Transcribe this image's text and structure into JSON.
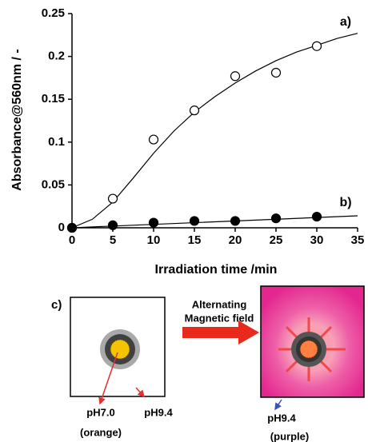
{
  "chart_data": {
    "type": "scatter",
    "xlabel": "Irradiation time /min",
    "ylabel": "Absorbance@560nm / -",
    "xlim": [
      0,
      35
    ],
    "xticks": [
      0,
      5,
      10,
      15,
      20,
      25,
      30,
      35
    ],
    "ylim": [
      0,
      0.25
    ],
    "yticks": [
      0,
      0.05,
      0.1,
      0.15,
      0.2,
      0.25
    ],
    "series": [
      {
        "name": "a)",
        "color": "#000000",
        "marker": "open",
        "x": [
          0,
          5,
          10,
          15,
          20,
          25,
          30
        ],
        "values": [
          0,
          0.034,
          0.103,
          0.137,
          0.177,
          0.181,
          0.212
        ]
      },
      {
        "name": "b)",
        "color": "#000000",
        "marker": "filled",
        "x": [
          0,
          5,
          10,
          15,
          20,
          25,
          30
        ],
        "values": [
          0,
          0.003,
          0.006,
          0.008,
          0.008,
          0.011,
          0.013
        ]
      }
    ],
    "fit_lines": [
      {
        "x": [
          0,
          2.5,
          5,
          7.5,
          10,
          12.5,
          15,
          17.5,
          20,
          22.5,
          25,
          27.5,
          30,
          32.5,
          35
        ],
        "values": [
          0,
          0.01,
          0.03,
          0.058,
          0.087,
          0.113,
          0.135,
          0.153,
          0.169,
          0.183,
          0.195,
          0.205,
          0.213,
          0.221,
          0.227
        ]
      },
      {
        "x": [
          0,
          35
        ],
        "values": [
          0,
          0.014
        ]
      }
    ]
  },
  "diagram": {
    "label": "c)",
    "arrow_text": [
      "Alternating",
      "Magnetic field"
    ],
    "left_labels": [
      "pH7.0",
      "(orange)"
    ],
    "left_outside_label": "pH9.4",
    "right_labels": [
      "pH9.4",
      "(purple)"
    ]
  }
}
